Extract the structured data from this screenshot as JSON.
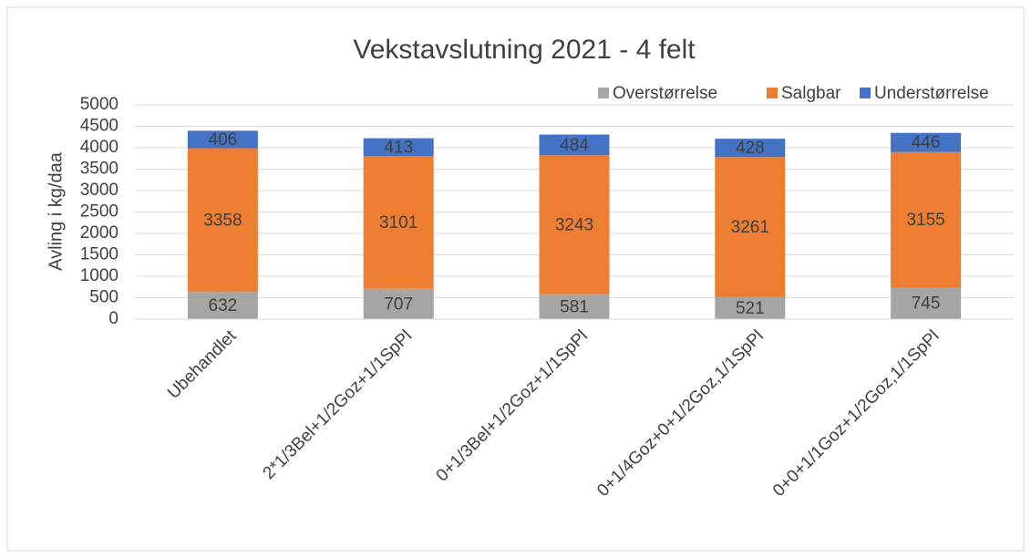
{
  "chart_data": {
    "type": "bar",
    "stacked": true,
    "title": "Vekstavslutning 2021 - 4 felt",
    "y_label": "Avling i kg/daa",
    "categories": [
      "Ubehandlet",
      "2*1/3Bel+1/2Goz+1/1SpPl",
      "0+1/3Bel+1/2Goz+1/1SpPl",
      "0+1/4Goz+0+1/2Goz,1/1SpPl",
      "0+0+1/1Goz+1/2Goz,1/1SpPl"
    ],
    "series": [
      {
        "name": "Overstørrelse",
        "color": "#a5a5a5",
        "values": [
          632,
          707,
          581,
          521,
          745
        ]
      },
      {
        "name": "Salgbar",
        "color": "#ed7d31",
        "values": [
          3358,
          3101,
          3243,
          3261,
          3155
        ]
      },
      {
        "name": "Understørrelse",
        "color": "#4472c4",
        "values": [
          406,
          413,
          484,
          428,
          446
        ]
      }
    ],
    "ylim": [
      0,
      5000
    ],
    "yticks": [
      0,
      500,
      1000,
      1500,
      2000,
      2500,
      3000,
      3500,
      4000,
      4500,
      5000
    ],
    "grid": true,
    "legend": "top-right"
  }
}
